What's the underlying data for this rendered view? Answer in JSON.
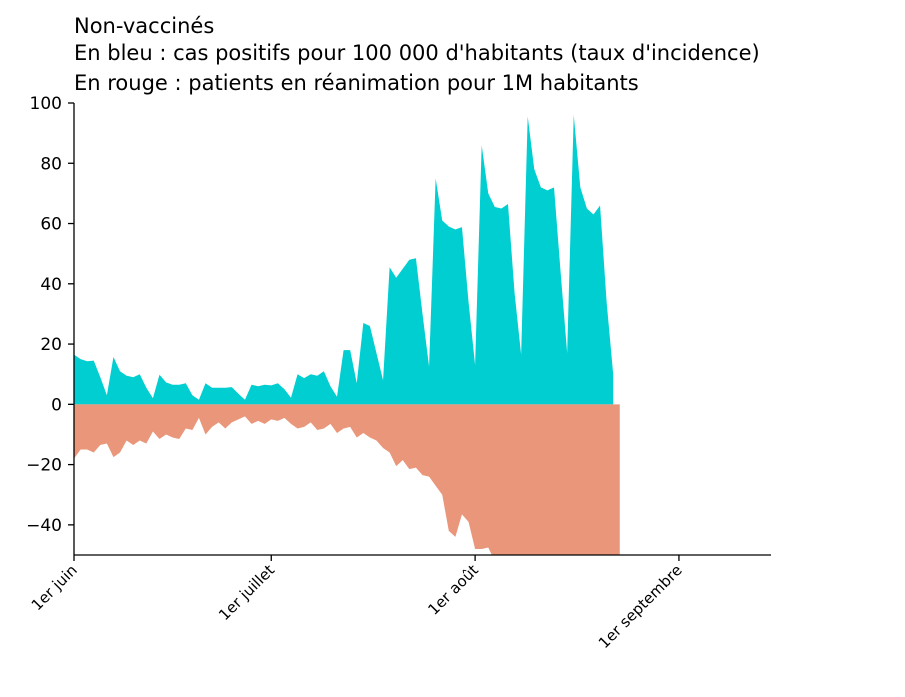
{
  "chart_data": {
    "type": "area",
    "title_lines": [
      "Non-vaccinés",
      "En bleu : cas positifs pour 100 000 d'habitants (taux d'incidence)",
      "En rouge : patients en réanimation pour 1M habitants"
    ],
    "xlabel": "",
    "ylabel": "",
    "x_start": "2021-06-01",
    "xlim_days": [
      0,
      106
    ],
    "ylim": [
      -50,
      100
    ],
    "yticks": [
      -40,
      -20,
      0,
      20,
      40,
      60,
      80,
      100
    ],
    "ytick_labels": [
      "−40",
      "−20",
      "0",
      "20",
      "40",
      "60",
      "80",
      "100"
    ],
    "xticks": [
      {
        "day": 0,
        "label": "1er juin"
      },
      {
        "day": 30,
        "label": "1er juillet"
      },
      {
        "day": 61,
        "label": "1er août"
      },
      {
        "day": 92,
        "label": "1er septembre"
      }
    ],
    "series": [
      {
        "color": "#00ced1",
        "values": [
          16.5,
          15,
          14.3,
          14.5,
          9,
          3,
          15.7,
          11,
          9.5,
          9,
          10,
          5.5,
          2,
          9.8,
          7.3,
          6.5,
          6.5,
          7,
          3,
          1.5,
          7,
          5.5,
          5.5,
          5.5,
          5.7,
          3.5,
          1.5,
          6.5,
          6,
          6.5,
          6.3,
          7,
          5,
          2.2,
          10,
          8.7,
          10,
          9.5,
          11,
          6,
          2.5,
          18,
          18,
          7,
          27,
          26,
          17,
          8,
          45.5,
          42,
          45,
          48,
          48.5,
          30,
          12.5,
          75,
          61,
          59,
          58,
          58.8,
          34,
          13,
          86,
          70,
          65.5,
          65,
          66.5,
          37,
          16.5,
          95.5,
          78,
          72,
          71,
          72,
          44,
          17,
          96,
          72,
          65,
          63,
          66,
          34,
          10
        ]
      },
      {
        "color": "#e9967a",
        "values": [
          -18,
          -15,
          -15,
          -16,
          -13.5,
          -13,
          -17.5,
          -16,
          -12,
          -13.5,
          -12,
          -13,
          -9,
          -11.5,
          -10,
          -11,
          -11.5,
          -8,
          -8.5,
          -4.5,
          -10,
          -7.5,
          -6,
          -8,
          -6,
          -5,
          -4,
          -6.5,
          -5.5,
          -6.5,
          -5,
          -5.5,
          -4.5,
          -6.5,
          -8,
          -7.5,
          -6,
          -8.5,
          -8,
          -6.5,
          -9.5,
          -8,
          -7.5,
          -11,
          -9.5,
          -11,
          -12,
          -14.5,
          -16,
          -20.5,
          -18.5,
          -21.5,
          -21,
          -23.5,
          -24,
          -27,
          -30,
          -42,
          -44,
          -36.5,
          -39,
          -48,
          -48,
          -47.5,
          -52,
          -52,
          -52,
          -52,
          -52,
          -52,
          -52,
          -52,
          -52,
          -52,
          -52,
          -52,
          -52,
          -52,
          -52,
          -52,
          -52,
          -52,
          -52,
          -52
        ]
      }
    ]
  }
}
